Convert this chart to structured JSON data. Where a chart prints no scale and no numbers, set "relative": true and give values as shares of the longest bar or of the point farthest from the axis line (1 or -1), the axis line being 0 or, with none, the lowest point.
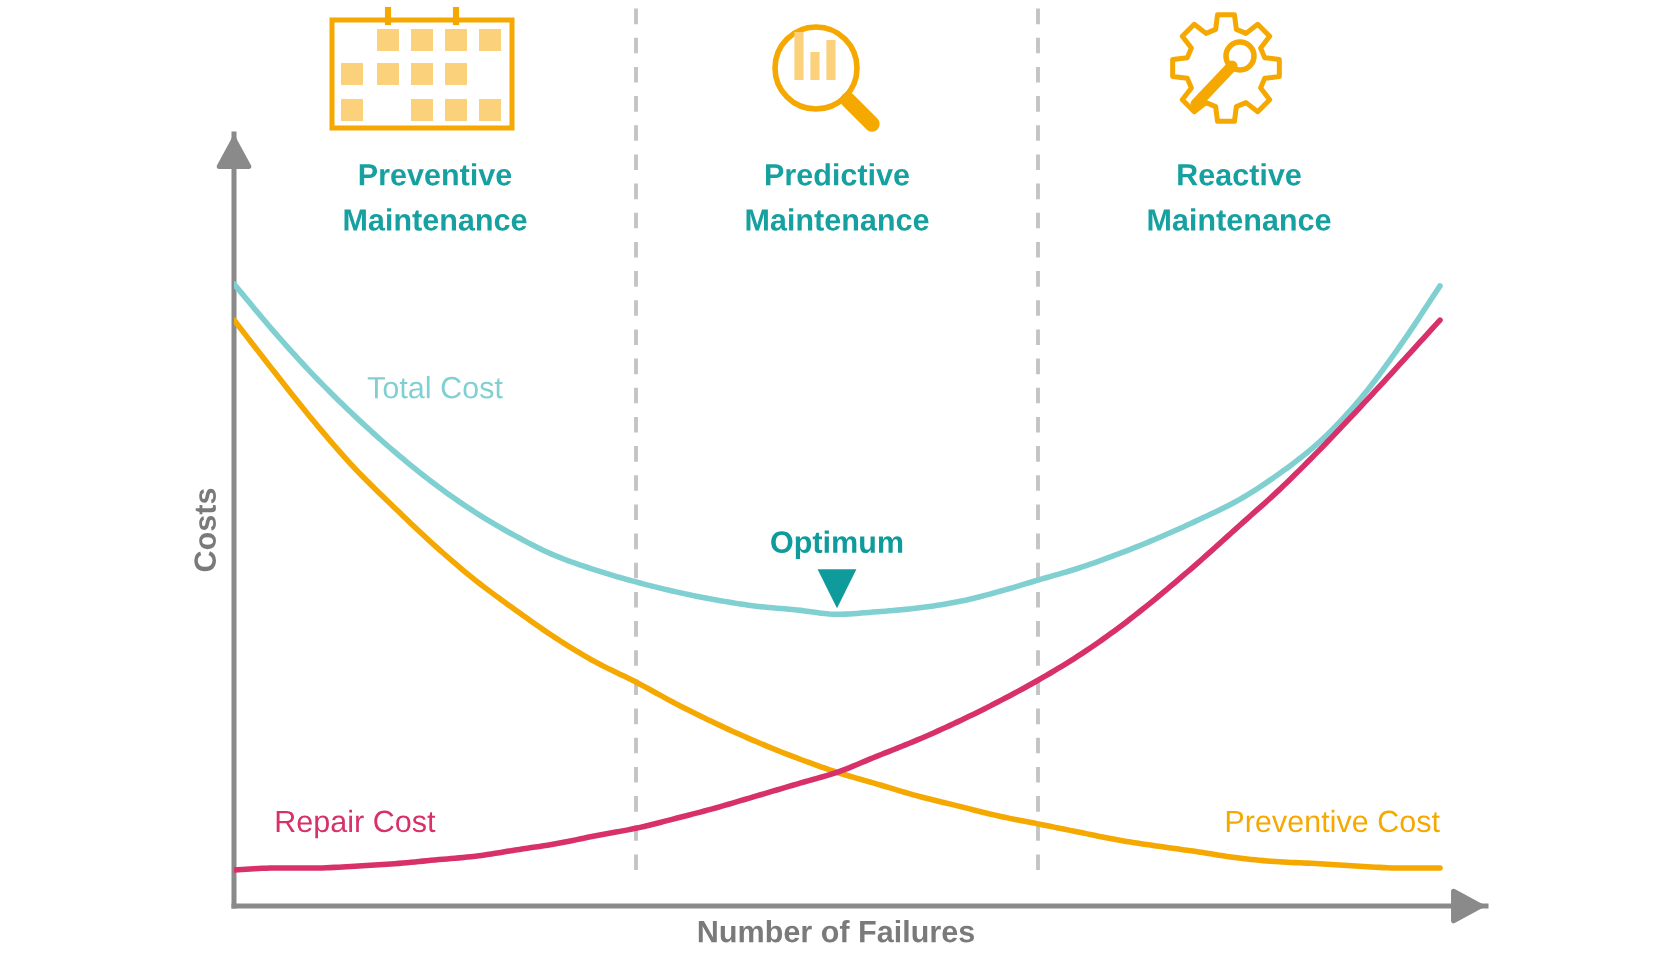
{
  "chart_data": {
    "type": "line",
    "relative": true,
    "xlabel": "Number of Failures",
    "ylabel": "Costs",
    "categories": [
      null,
      null,
      null,
      null,
      null,
      null,
      null,
      null,
      null,
      null,
      null,
      null,
      null,
      null,
      null,
      null,
      null,
      null,
      null,
      null,
      null,
      null,
      null,
      null,
      null,
      null,
      null,
      null,
      null,
      null,
      null
    ],
    "series": [
      {
        "name": "Total Cost",
        "color": "#80d0d2",
        "values": [
          1.0,
          0.923,
          0.852,
          0.788,
          0.73,
          0.678,
          0.633,
          0.595,
          0.563,
          0.54,
          0.521,
          0.505,
          0.492,
          0.482,
          0.476,
          0.469,
          0.473,
          0.479,
          0.489,
          0.505,
          0.524,
          0.543,
          0.566,
          0.592,
          0.621,
          0.653,
          0.695,
          0.746,
          0.814,
          0.9,
          0.997
        ]
      },
      {
        "name": "Preventive Cost",
        "color": "#f5a800",
        "values": [
          0.942,
          0.859,
          0.778,
          0.704,
          0.64,
          0.579,
          0.524,
          0.476,
          0.431,
          0.392,
          0.36,
          0.325,
          0.293,
          0.264,
          0.238,
          0.215,
          0.196,
          0.177,
          0.161,
          0.145,
          0.132,
          0.119,
          0.106,
          0.096,
          0.087,
          0.077,
          0.071,
          0.068,
          0.064,
          0.061,
          0.061
        ]
      },
      {
        "name": "Repair Cost",
        "color": "#d8306a",
        "values": [
          0.058,
          0.061,
          0.061,
          0.064,
          0.068,
          0.074,
          0.08,
          0.09,
          0.1,
          0.113,
          0.125,
          0.141,
          0.158,
          0.177,
          0.196,
          0.215,
          0.241,
          0.267,
          0.296,
          0.328,
          0.363,
          0.402,
          0.447,
          0.498,
          0.553,
          0.611,
          0.669,
          0.733,
          0.801,
          0.871,
          0.942
        ]
      },
      {
        "name": "Optimum",
        "marker": "triangle",
        "color": "#0f9b9b",
        "values": [
          null,
          null,
          null,
          null,
          null,
          null,
          null,
          null,
          null,
          null,
          null,
          null,
          null,
          null,
          null,
          0.51,
          null,
          null,
          null,
          null,
          null,
          null,
          null,
          null,
          null,
          null,
          null,
          null,
          null,
          null,
          null
        ]
      }
    ],
    "ref_lines": [
      {
        "axis": "x",
        "color": "#c4c4c4",
        "line_style": "dashed"
      },
      {
        "axis": "x",
        "color": "#c4c4c4",
        "line_style": "dashed"
      }
    ],
    "annotations": [
      "Preventive\nMaintenance",
      "Predictive\nMaintenance",
      "Reactive\nMaintenance"
    ]
  }
}
